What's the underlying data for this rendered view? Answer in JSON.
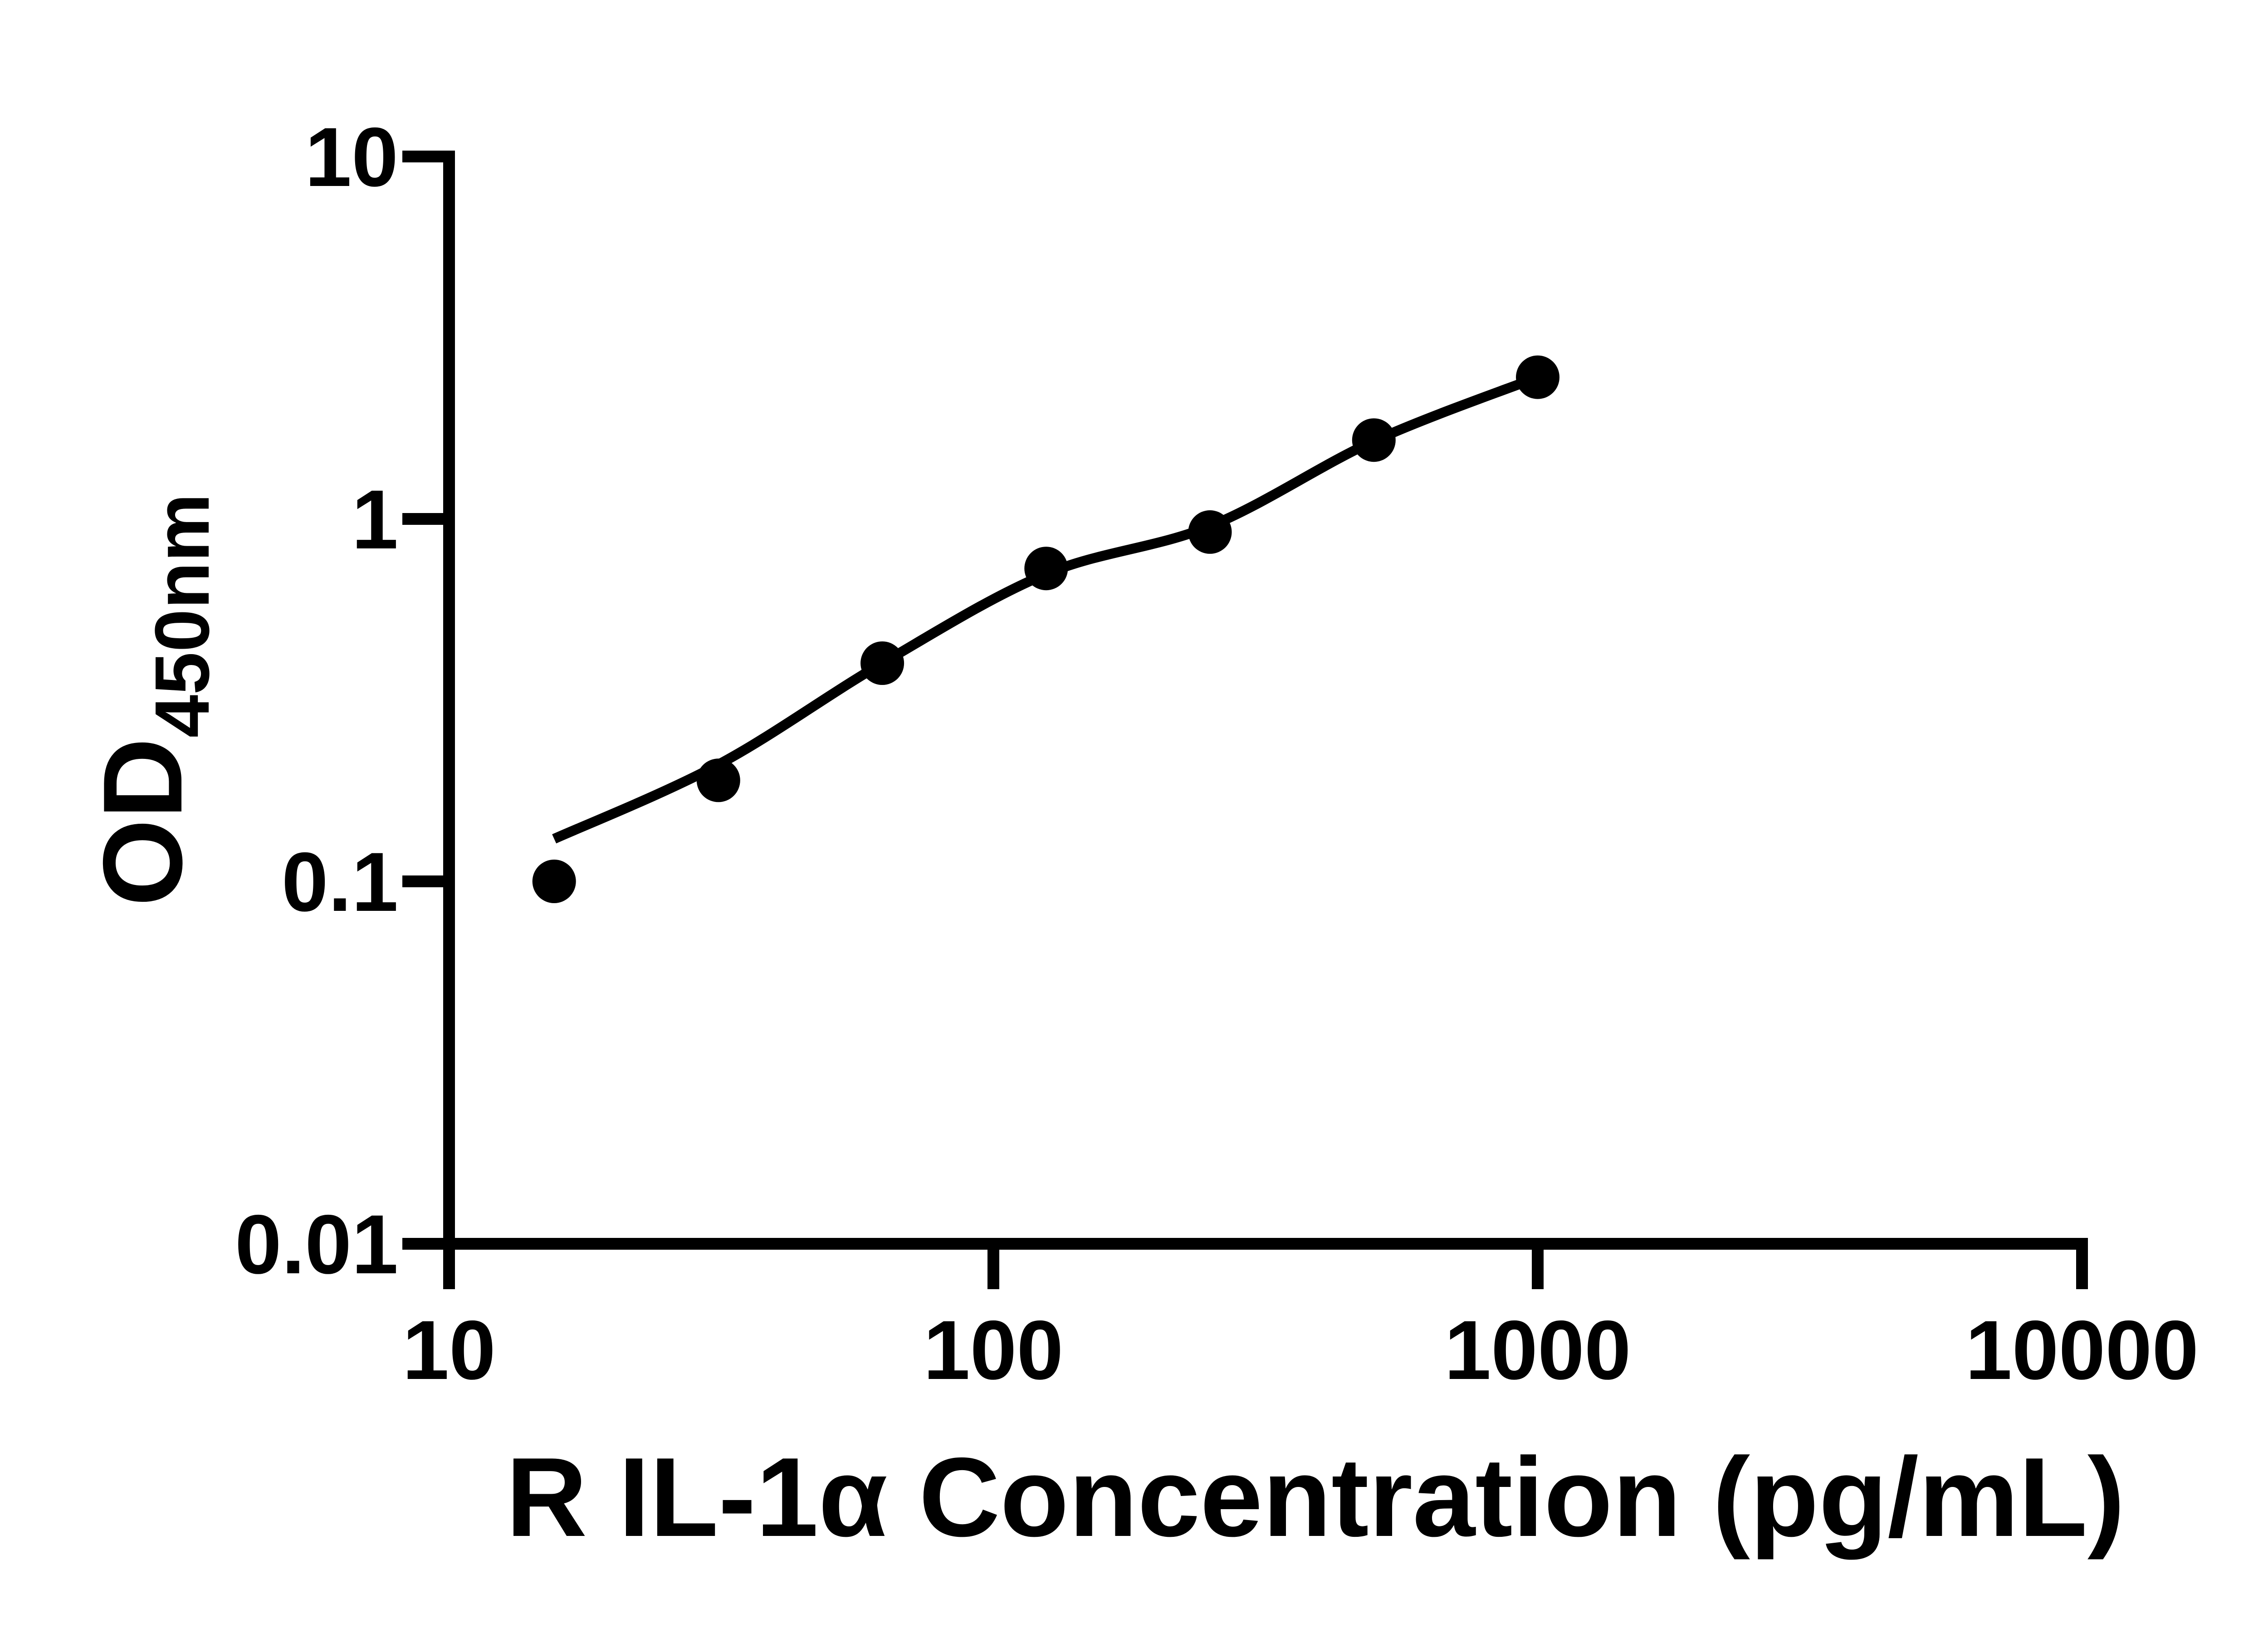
{
  "figure": {
    "background": "#ffffff",
    "ink": "#000000"
  },
  "chart_data": {
    "type": "scatter",
    "title": "",
    "xlabel": "R IL-1α Concentration (pg/mL)",
    "ylabel_main": "OD",
    "ylabel_sub": "450nm",
    "x_scale": "log",
    "y_scale": "log",
    "xlim": [
      10,
      10000
    ],
    "ylim": [
      0.01,
      10
    ],
    "x_ticks": [
      10,
      100,
      1000,
      10000
    ],
    "x_tick_labels": [
      "10",
      "100",
      "1000",
      "10000"
    ],
    "y_ticks": [
      10,
      1,
      0.1,
      0.01
    ],
    "y_tick_labels": [
      "10",
      "1",
      "0.1",
      "0.01"
    ],
    "grid": false,
    "legend": null,
    "series": [
      {
        "name": "standard-points",
        "type": "scatter",
        "marker": "circle",
        "color": "#000000",
        "x": [
          15.6,
          31.25,
          62.5,
          125,
          250,
          500,
          1000
        ],
        "y": [
          0.1,
          0.19,
          0.4,
          0.73,
          0.92,
          1.65,
          2.46
        ]
      },
      {
        "name": "fit-line",
        "type": "line",
        "color": "#000000",
        "x": [
          15.6,
          31.25,
          62.5,
          125,
          250,
          500,
          1000
        ],
        "y": [
          0.131,
          0.21,
          0.4,
          0.705,
          0.955,
          1.64,
          2.46
        ]
      }
    ]
  }
}
